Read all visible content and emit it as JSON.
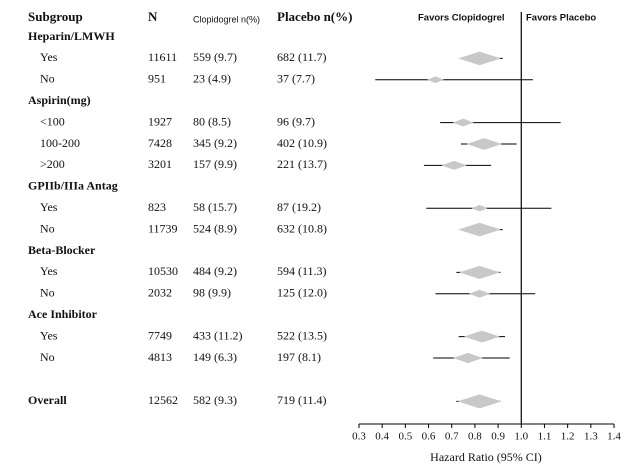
{
  "chart_data": {
    "type": "forest",
    "headers": {
      "subgroup": "Subgroup",
      "n": "N",
      "clopidogrel": "Clopidogrel n(%)",
      "placebo": "Placebo n(%)"
    },
    "favors_left": "Favors Clopidogrel",
    "favors_right": "Favors Placebo",
    "x_label": "Hazard Ratio (95% CI)",
    "xlim": [
      0.3,
      1.4
    ],
    "xticks": [
      0.3,
      0.4,
      0.5,
      0.6,
      0.7,
      0.8,
      0.9,
      {
        "value": 1,
        "label": "1.0"
      },
      1.1,
      1.2,
      1.3,
      1.4
    ],
    "reference_line": 1,
    "marker_color": "#c8c8c8",
    "groups": [
      {
        "name": "Heparin/LMWH",
        "rows": [
          {
            "label": "Yes",
            "n": 11611,
            "clopidogrel": "559 (9.7)",
            "placebo": "682 (11.7)",
            "hr": 0.82,
            "lo": 0.74,
            "hi": 0.92
          },
          {
            "label": "No",
            "n": 951,
            "clopidogrel": "23 (4.9)",
            "placebo": "37 (7.7)",
            "hr": 0.63,
            "lo": 0.37,
            "hi": 1.05
          }
        ]
      },
      {
        "name": "Aspirin(mg)",
        "rows": [
          {
            "label": "<100",
            "n": 1927,
            "clopidogrel": "80 (8.5)",
            "placebo": "96 (9.7)",
            "hr": 0.75,
            "lo": 0.65,
            "hi": 1.17
          },
          {
            "label": "100-200",
            "n": 7428,
            "clopidogrel": "345 (9.2)",
            "placebo": "402 (10.9)",
            "hr": 0.84,
            "lo": 0.74,
            "hi": 0.98
          },
          {
            "label": ">200",
            "n": 3201,
            "clopidogrel": "157 (9.9)",
            "placebo": "221 (13.7)",
            "hr": 0.71,
            "lo": 0.58,
            "hi": 0.87
          }
        ]
      },
      {
        "name": "GPIIb/IIIa Antag",
        "rows": [
          {
            "label": "Yes",
            "n": 823,
            "clopidogrel": "58 (15.7)",
            "placebo": "87 (19.2)",
            "hr": 0.82,
            "lo": 0.59,
            "hi": 1.13
          },
          {
            "label": "No",
            "n": 11739,
            "clopidogrel": "524 (8.9)",
            "placebo": "632 (10.8)",
            "hr": 0.82,
            "lo": 0.74,
            "hi": 0.92
          }
        ]
      },
      {
        "name": "Beta-Blocker",
        "rows": [
          {
            "label": "Yes",
            "n": 10530,
            "clopidogrel": "484 (9.2)",
            "placebo": "594 (11.3)",
            "hr": 0.82,
            "lo": 0.72,
            "hi": 0.91
          },
          {
            "label": "No",
            "n": 2032,
            "clopidogrel": "98 (9.9)",
            "placebo": "125 (12.0)",
            "hr": 0.82,
            "lo": 0.63,
            "hi": 1.06
          }
        ]
      },
      {
        "name": "Ace Inhibitor",
        "rows": [
          {
            "label": "Yes",
            "n": 7749,
            "clopidogrel": "433 (11.2)",
            "placebo": "522 (13.5)",
            "hr": 0.83,
            "lo": 0.73,
            "hi": 0.93
          },
          {
            "label": "No",
            "n": 4813,
            "clopidogrel": "149 (6.3)",
            "placebo": "197 (8.1)",
            "hr": 0.77,
            "lo": 0.62,
            "hi": 0.95
          }
        ]
      }
    ],
    "overall": {
      "label": "Overall",
      "n": 12562,
      "clopidogrel": "582 (9.3)",
      "placebo": "719 (11.4)",
      "hr": 0.82,
      "lo": 0.72,
      "hi": 0.91
    }
  }
}
